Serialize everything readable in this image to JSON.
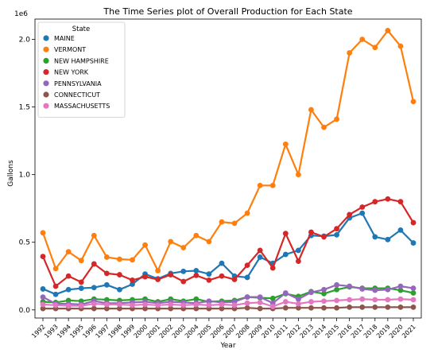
{
  "chart_data": {
    "type": "line",
    "title": "The Time Series plot of Overall Production for Each State",
    "xlabel": "Year",
    "ylabel": "Gallons",
    "y_offset_label": "1e6",
    "x": [
      1992,
      1993,
      1994,
      1995,
      1996,
      1997,
      1998,
      1999,
      2000,
      2001,
      2002,
      2003,
      2004,
      2005,
      2006,
      2007,
      2008,
      2009,
      2010,
      2011,
      2012,
      2013,
      2014,
      2015,
      2016,
      2017,
      2018,
      2019,
      2020,
      2021
    ],
    "xtick_labels": [
      "1992",
      "1993",
      "1994",
      "1995",
      "1996",
      "1997",
      "1998",
      "1999",
      "2000",
      "2001",
      "2002",
      "2003",
      "2004",
      "2005",
      "2006",
      "2007",
      "2008",
      "2009",
      "2010",
      "2011",
      "2012",
      "2013",
      "2014",
      "2015",
      "2016",
      "2017",
      "2018",
      "2019",
      "2020",
      "2021"
    ],
    "ylim": [
      -60000,
      2150000
    ],
    "yticks": [
      0,
      500000,
      1000000,
      1500000,
      2000000
    ],
    "ytick_labels": [
      "0.0",
      "0.5",
      "1.0",
      "1.5",
      "2.0"
    ],
    "grid": false,
    "legend": {
      "title": "State",
      "placement": "upper-left"
    },
    "series": [
      {
        "name": "MAINE",
        "color": "#1f77b4",
        "values": [
          155000,
          115000,
          150000,
          160000,
          165000,
          185000,
          150000,
          190000,
          265000,
          230000,
          270000,
          285000,
          290000,
          265000,
          345000,
          250000,
          240000,
          390000,
          345000,
          410000,
          440000,
          550000,
          545000,
          555000,
          680000,
          715000,
          540000,
          520000,
          590000,
          495000
        ]
      },
      {
        "name": "VERMONT",
        "color": "#ff7f0e",
        "values": [
          570000,
          305000,
          430000,
          365000,
          550000,
          390000,
          375000,
          370000,
          480000,
          290000,
          505000,
          460000,
          550000,
          505000,
          650000,
          640000,
          715000,
          920000,
          920000,
          1225000,
          1000000,
          1480000,
          1350000,
          1410000,
          1900000,
          2000000,
          1940000,
          2065000,
          1950000,
          1540000
        ]
      },
      {
        "name": "NEW HAMPSHIRE",
        "color": "#2ca02c",
        "values": [
          60000,
          55000,
          70000,
          65000,
          80000,
          75000,
          70000,
          75000,
          80000,
          60000,
          80000,
          65000,
          80000,
          60000,
          65000,
          70000,
          95000,
          90000,
          85000,
          120000,
          100000,
          135000,
          120000,
          150000,
          170000,
          160000,
          160000,
          160000,
          145000,
          125000
        ]
      },
      {
        "name": "NEW YORK",
        "color": "#d62728",
        "values": [
          395000,
          175000,
          250000,
          205000,
          340000,
          270000,
          260000,
          220000,
          245000,
          225000,
          260000,
          210000,
          255000,
          220000,
          250000,
          225000,
          330000,
          440000,
          310000,
          565000,
          360000,
          575000,
          540000,
          600000,
          705000,
          760000,
          800000,
          820000,
          800000,
          645000
        ]
      },
      {
        "name": "PENNSYLVANIA",
        "color": "#9467bd",
        "values": [
          95000,
          45000,
          45000,
          40000,
          65000,
          50000,
          50000,
          55000,
          60000,
          50000,
          60000,
          55000,
          50000,
          65000,
          55000,
          60000,
          95000,
          95000,
          50000,
          125000,
          80000,
          130000,
          150000,
          185000,
          175000,
          155000,
          145000,
          150000,
          175000,
          160000
        ]
      },
      {
        "name": "CONNECTICUT",
        "color": "#8c564b",
        "values": [
          10000,
          10000,
          10000,
          10000,
          10000,
          10000,
          10000,
          10000,
          10000,
          10000,
          10000,
          10000,
          10000,
          10000,
          10000,
          10000,
          15000,
          10000,
          10000,
          15000,
          15000,
          15000,
          15000,
          15000,
          20000,
          20000,
          20000,
          20000,
          20000,
          20000
        ]
      },
      {
        "name": "MASSACHUSETTS",
        "color": "#e377c2",
        "values": [
          40000,
          35000,
          30000,
          30000,
          45000,
          40000,
          40000,
          35000,
          40000,
          35000,
          40000,
          35000,
          40000,
          35000,
          40000,
          35000,
          50000,
          55000,
          25000,
          60000,
          45000,
          60000,
          65000,
          70000,
          75000,
          80000,
          75000,
          75000,
          80000,
          75000
        ]
      }
    ]
  }
}
